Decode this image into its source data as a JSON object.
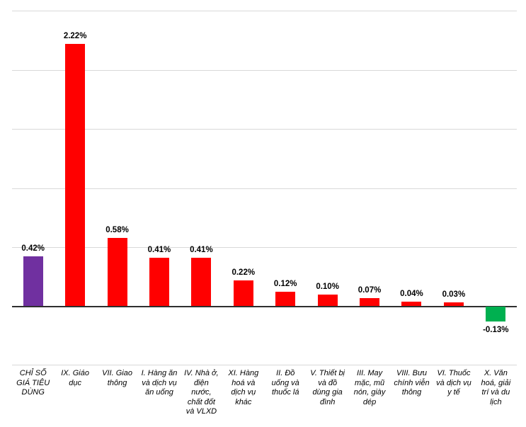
{
  "chart_data": {
    "type": "bar",
    "title": "",
    "xlabel": "",
    "ylabel": "",
    "unit": "%",
    "ylim": [
      -0.5,
      2.5
    ],
    "gridline_step": 0.5,
    "grid": true,
    "legend": "none",
    "categories": [
      "CHỈ SỐ GIÁ TIÊU DÙNG",
      "IX. Giáo dục",
      "VII. Giao thông",
      "I. Hàng ăn và dịch vụ ăn uống",
      "IV. Nhà ở, điện nước, chất đốt và VLXD",
      "XI. Hàng hoá và dịch vụ khác",
      "II. Đồ uống và thuốc lá",
      "V. Thiết bị và đồ dùng gia đình",
      "III. May mặc, mũ nón, giày dép",
      "VIII. Bưu chính viễn thông",
      "VI. Thuốc và dịch vụ y tế",
      "X. Văn hoá, giải trí và du lịch"
    ],
    "category_lines": [
      [
        "CHỈ SỐ",
        "GIÁ TIÊU",
        "DÙNG"
      ],
      [
        "IX. Giáo",
        "dục"
      ],
      [
        "VII. Giao",
        "thông"
      ],
      [
        "I. Hàng ăn",
        "và dịch vụ",
        "ăn uống"
      ],
      [
        "IV. Nhà ở,",
        "điện",
        "nước,",
        "chất đốt",
        "và VLXD"
      ],
      [
        "XI. Hàng",
        "hoá và",
        "dịch vụ",
        "khác"
      ],
      [
        "II. Đồ",
        "uống và",
        "thuốc lá"
      ],
      [
        "V. Thiết bị",
        "và đồ",
        "dùng gia",
        "đình"
      ],
      [
        "III. May",
        "mặc, mũ",
        "nón, giày",
        "dép"
      ],
      [
        "VIII. Bưu",
        "chính viễn",
        "thông"
      ],
      [
        "VI. Thuốc",
        "và dịch vụ",
        "y tế"
      ],
      [
        "X. Văn",
        "hoá, giải",
        "trí và du",
        "lịch"
      ]
    ],
    "values": [
      0.42,
      2.22,
      0.58,
      0.41,
      0.41,
      0.22,
      0.12,
      0.1,
      0.07,
      0.04,
      0.03,
      -0.13
    ],
    "data_labels": [
      "0.42%",
      "2.22%",
      "0.58%",
      "0.41%",
      "0.41%",
      "0.22%",
      "0.12%",
      "0.10%",
      "0.07%",
      "0.04%",
      "0.03%",
      "-0.13%"
    ],
    "bar_colors": [
      "#7030A0",
      "#FF0000",
      "#FF0000",
      "#FF0000",
      "#FF0000",
      "#FF0000",
      "#FF0000",
      "#FF0000",
      "#FF0000",
      "#FF0000",
      "#FF0000",
      "#00B050"
    ]
  },
  "colors": {
    "cpi_total_bar": "#7030A0",
    "increase_bar": "#FF0000",
    "decrease_bar": "#00B050",
    "gridline": "#D9D9D9",
    "axis_line": "#2F2F2F",
    "label_text": "#000000",
    "background": "#FFFFFF"
  }
}
